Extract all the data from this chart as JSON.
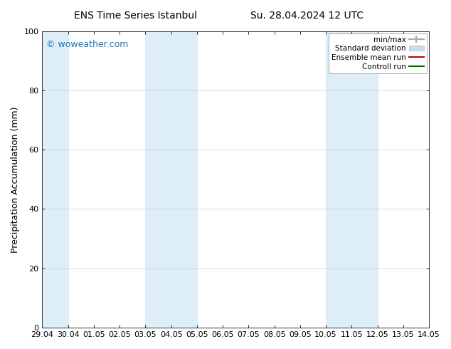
{
  "title_left": "ENS Time Series Istanbul",
  "title_right": "Su. 28.04.2024 12 UTC",
  "ylabel": "Precipitation Accumulation (mm)",
  "watermark": "© woweather.com",
  "watermark_color": "#1a7abf",
  "ylim": [
    0,
    100
  ],
  "yticks": [
    0,
    20,
    40,
    60,
    80,
    100
  ],
  "xtick_labels": [
    "29.04",
    "30.04",
    "01.05",
    "02.05",
    "03.05",
    "04.05",
    "05.05",
    "06.05",
    "07.05",
    "08.05",
    "09.05",
    "10.05",
    "11.05",
    "12.05",
    "13.05",
    "14.05"
  ],
  "xtick_positions": [
    0,
    1,
    2,
    3,
    4,
    5,
    6,
    7,
    8,
    9,
    10,
    11,
    12,
    13,
    14,
    15
  ],
  "shaded_bands": [
    {
      "x_start": 0,
      "x_end": 1,
      "color": "#ddeef8"
    },
    {
      "x_start": 4,
      "x_end": 6,
      "color": "#ddeef8"
    },
    {
      "x_start": 11,
      "x_end": 13,
      "color": "#ddeef8"
    }
  ],
  "legend_entries": [
    {
      "label": "min/max",
      "color": "#aaaaaa",
      "lw": 1.5
    },
    {
      "label": "Standard deviation",
      "color": "#ccdde8",
      "lw": 6
    },
    {
      "label": "Ensemble mean run",
      "color": "#cc0000",
      "lw": 1.5
    },
    {
      "label": "Controll run",
      "color": "#006600",
      "lw": 1.5
    }
  ],
  "background_color": "#ffffff",
  "plot_bg_color": "#ffffff",
  "grid_color": "#cccccc",
  "font_family": "DejaVu Sans",
  "font_size": 8.5,
  "title_font_size": 10,
  "ylabel_font_size": 9,
  "tick_font_size": 8,
  "watermark_font_size": 9
}
